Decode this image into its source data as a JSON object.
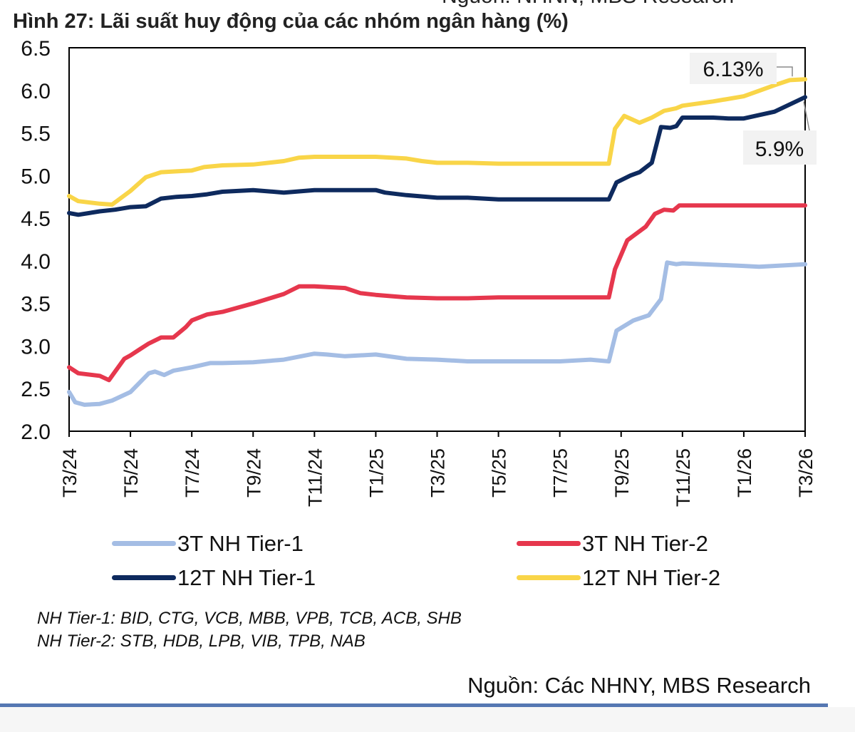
{
  "header": {
    "source_cut": "Nguồn: NHNN, MBS Research",
    "title": "Hình 27: Lãi suất huy động của các nhóm ngân hàng (%)"
  },
  "chart_data": {
    "type": "line",
    "title": "Hình 27: Lãi suất huy động của các nhóm ngân hàng (%)",
    "ylim": [
      2.0,
      6.5
    ],
    "yticks": [
      "6.5",
      "6.0",
      "5.5",
      "5.0",
      "4.5",
      "4.0",
      "3.5",
      "3.0",
      "2.5",
      "2.0"
    ],
    "xlim": [
      0,
      24
    ],
    "xticks": [
      {
        "x": 0,
        "label": "T3/24"
      },
      {
        "x": 2,
        "label": "T5/24"
      },
      {
        "x": 4,
        "label": "T7/24"
      },
      {
        "x": 6,
        "label": "T9/24"
      },
      {
        "x": 8,
        "label": "T11/24"
      },
      {
        "x": 10,
        "label": "T1/25"
      },
      {
        "x": 12,
        "label": "T3/25"
      },
      {
        "x": 14,
        "label": "T5/25"
      },
      {
        "x": 16,
        "label": "T7/25"
      },
      {
        "x": 18,
        "label": "T9/25"
      },
      {
        "x": 20,
        "label": "T11/25"
      },
      {
        "x": 22,
        "label": "T1/26"
      },
      {
        "x": 24,
        "label": "T3/26"
      }
    ],
    "grid": false,
    "legend_position": "bottom",
    "series": [
      {
        "name": "3T NH Tier-1",
        "color": "#a4bde4",
        "points": [
          [
            0,
            2.46
          ],
          [
            0.2,
            2.34
          ],
          [
            0.5,
            2.31
          ],
          [
            1,
            2.32
          ],
          [
            1.4,
            2.36
          ],
          [
            2,
            2.46
          ],
          [
            2.6,
            2.68
          ],
          [
            2.8,
            2.7
          ],
          [
            3.1,
            2.66
          ],
          [
            3.4,
            2.71
          ],
          [
            4,
            2.75
          ],
          [
            4.6,
            2.8
          ],
          [
            5,
            2.8
          ],
          [
            6,
            2.81
          ],
          [
            7,
            2.84
          ],
          [
            8,
            2.91
          ],
          [
            8.4,
            2.9
          ],
          [
            9,
            2.88
          ],
          [
            10,
            2.9
          ],
          [
            11,
            2.85
          ],
          [
            12,
            2.84
          ],
          [
            13,
            2.82
          ],
          [
            14,
            2.82
          ],
          [
            15,
            2.82
          ],
          [
            16,
            2.82
          ],
          [
            17,
            2.84
          ],
          [
            17.6,
            2.82
          ],
          [
            17.85,
            3.18
          ],
          [
            18.4,
            3.3
          ],
          [
            18.9,
            3.36
          ],
          [
            19.3,
            3.55
          ],
          [
            19.5,
            3.98
          ],
          [
            19.8,
            3.96
          ],
          [
            20,
            3.97
          ],
          [
            22,
            3.94
          ],
          [
            22.5,
            3.93
          ],
          [
            24,
            3.96
          ]
        ]
      },
      {
        "name": "3T NH Tier-2",
        "color": "#e6374d",
        "points": [
          [
            0,
            2.75
          ],
          [
            0.3,
            2.68
          ],
          [
            1,
            2.65
          ],
          [
            1.3,
            2.6
          ],
          [
            1.5,
            2.7
          ],
          [
            1.8,
            2.85
          ],
          [
            2,
            2.89
          ],
          [
            2.3,
            2.96
          ],
          [
            2.6,
            3.03
          ],
          [
            3,
            3.1
          ],
          [
            3.4,
            3.1
          ],
          [
            3.8,
            3.22
          ],
          [
            4,
            3.3
          ],
          [
            4.5,
            3.37
          ],
          [
            5,
            3.4
          ],
          [
            6,
            3.5
          ],
          [
            7,
            3.61
          ],
          [
            7.5,
            3.7
          ],
          [
            8,
            3.7
          ],
          [
            9,
            3.68
          ],
          [
            9.5,
            3.62
          ],
          [
            10,
            3.6
          ],
          [
            11,
            3.57
          ],
          [
            12,
            3.56
          ],
          [
            13,
            3.56
          ],
          [
            14,
            3.57
          ],
          [
            15,
            3.57
          ],
          [
            16,
            3.57
          ],
          [
            17,
            3.57
          ],
          [
            17.6,
            3.57
          ],
          [
            17.8,
            3.9
          ],
          [
            18.2,
            4.24
          ],
          [
            18.5,
            4.32
          ],
          [
            18.8,
            4.4
          ],
          [
            19.1,
            4.55
          ],
          [
            19.4,
            4.6
          ],
          [
            19.7,
            4.59
          ],
          [
            19.9,
            4.65
          ],
          [
            21,
            4.65
          ],
          [
            22,
            4.65
          ],
          [
            24,
            4.65
          ]
        ]
      },
      {
        "name": "12T NH Tier-1",
        "color": "#0e2a5e",
        "points": [
          [
            0,
            4.56
          ],
          [
            0.3,
            4.54
          ],
          [
            1,
            4.58
          ],
          [
            1.5,
            4.6
          ],
          [
            2,
            4.63
          ],
          [
            2.5,
            4.64
          ],
          [
            3,
            4.73
          ],
          [
            3.5,
            4.75
          ],
          [
            4,
            4.76
          ],
          [
            4.5,
            4.78
          ],
          [
            5,
            4.81
          ],
          [
            6,
            4.83
          ],
          [
            7,
            4.8
          ],
          [
            8,
            4.83
          ],
          [
            9,
            4.83
          ],
          [
            10,
            4.83
          ],
          [
            10.3,
            4.8
          ],
          [
            11,
            4.77
          ],
          [
            12,
            4.74
          ],
          [
            13,
            4.74
          ],
          [
            14,
            4.72
          ],
          [
            15,
            4.72
          ],
          [
            16,
            4.72
          ],
          [
            17,
            4.72
          ],
          [
            17.6,
            4.72
          ],
          [
            17.85,
            4.92
          ],
          [
            18.3,
            5.0
          ],
          [
            18.6,
            5.04
          ],
          [
            19,
            5.15
          ],
          [
            19.3,
            5.57
          ],
          [
            19.6,
            5.56
          ],
          [
            19.8,
            5.58
          ],
          [
            20,
            5.68
          ],
          [
            21,
            5.68
          ],
          [
            21.5,
            5.67
          ],
          [
            22,
            5.67
          ],
          [
            23,
            5.75
          ],
          [
            24,
            5.92
          ]
        ]
      },
      {
        "name": "12T NH Tier-2",
        "color": "#f9d548",
        "points": [
          [
            0,
            4.76
          ],
          [
            0.3,
            4.7
          ],
          [
            1,
            4.67
          ],
          [
            1.4,
            4.66
          ],
          [
            2,
            4.82
          ],
          [
            2.5,
            4.98
          ],
          [
            3,
            5.04
          ],
          [
            3.5,
            5.05
          ],
          [
            4,
            5.06
          ],
          [
            4.4,
            5.1
          ],
          [
            5,
            5.12
          ],
          [
            6,
            5.13
          ],
          [
            7,
            5.17
          ],
          [
            7.5,
            5.21
          ],
          [
            8,
            5.22
          ],
          [
            9,
            5.22
          ],
          [
            10,
            5.22
          ],
          [
            11,
            5.2
          ],
          [
            11.5,
            5.17
          ],
          [
            12,
            5.15
          ],
          [
            13,
            5.15
          ],
          [
            14,
            5.14
          ],
          [
            15,
            5.14
          ],
          [
            16,
            5.14
          ],
          [
            17,
            5.14
          ],
          [
            17.6,
            5.14
          ],
          [
            17.8,
            5.55
          ],
          [
            18.1,
            5.7
          ],
          [
            18.6,
            5.62
          ],
          [
            19,
            5.68
          ],
          [
            19.4,
            5.76
          ],
          [
            19.8,
            5.79
          ],
          [
            20,
            5.82
          ],
          [
            21,
            5.87
          ],
          [
            22,
            5.93
          ],
          [
            23,
            6.06
          ],
          [
            23.5,
            6.12
          ],
          [
            24,
            6.13
          ]
        ]
      }
    ],
    "annotations": [
      {
        "text": "6.13%",
        "series": "12T NH Tier-2"
      },
      {
        "text": "5.9%",
        "series": "12T NH Tier-1"
      }
    ]
  },
  "legend": {
    "items": [
      {
        "label": "3T NH Tier-1",
        "color": "#a4bde4"
      },
      {
        "label": "3T NH Tier-2",
        "color": "#e6374d"
      },
      {
        "label": "12T NH Tier-1",
        "color": "#0e2a5e"
      },
      {
        "label": "12T NH Tier-2",
        "color": "#f9d548"
      }
    ]
  },
  "notes": {
    "tier1": "NH Tier-1: BID, CTG, VCB, MBB, VPB, TCB, ACB, SHB",
    "tier2": "NH Tier-2: STB, HDB, LPB, VIB, TPB, NAB"
  },
  "footer": {
    "source": "Nguồn: Các NHNY, MBS Research"
  }
}
